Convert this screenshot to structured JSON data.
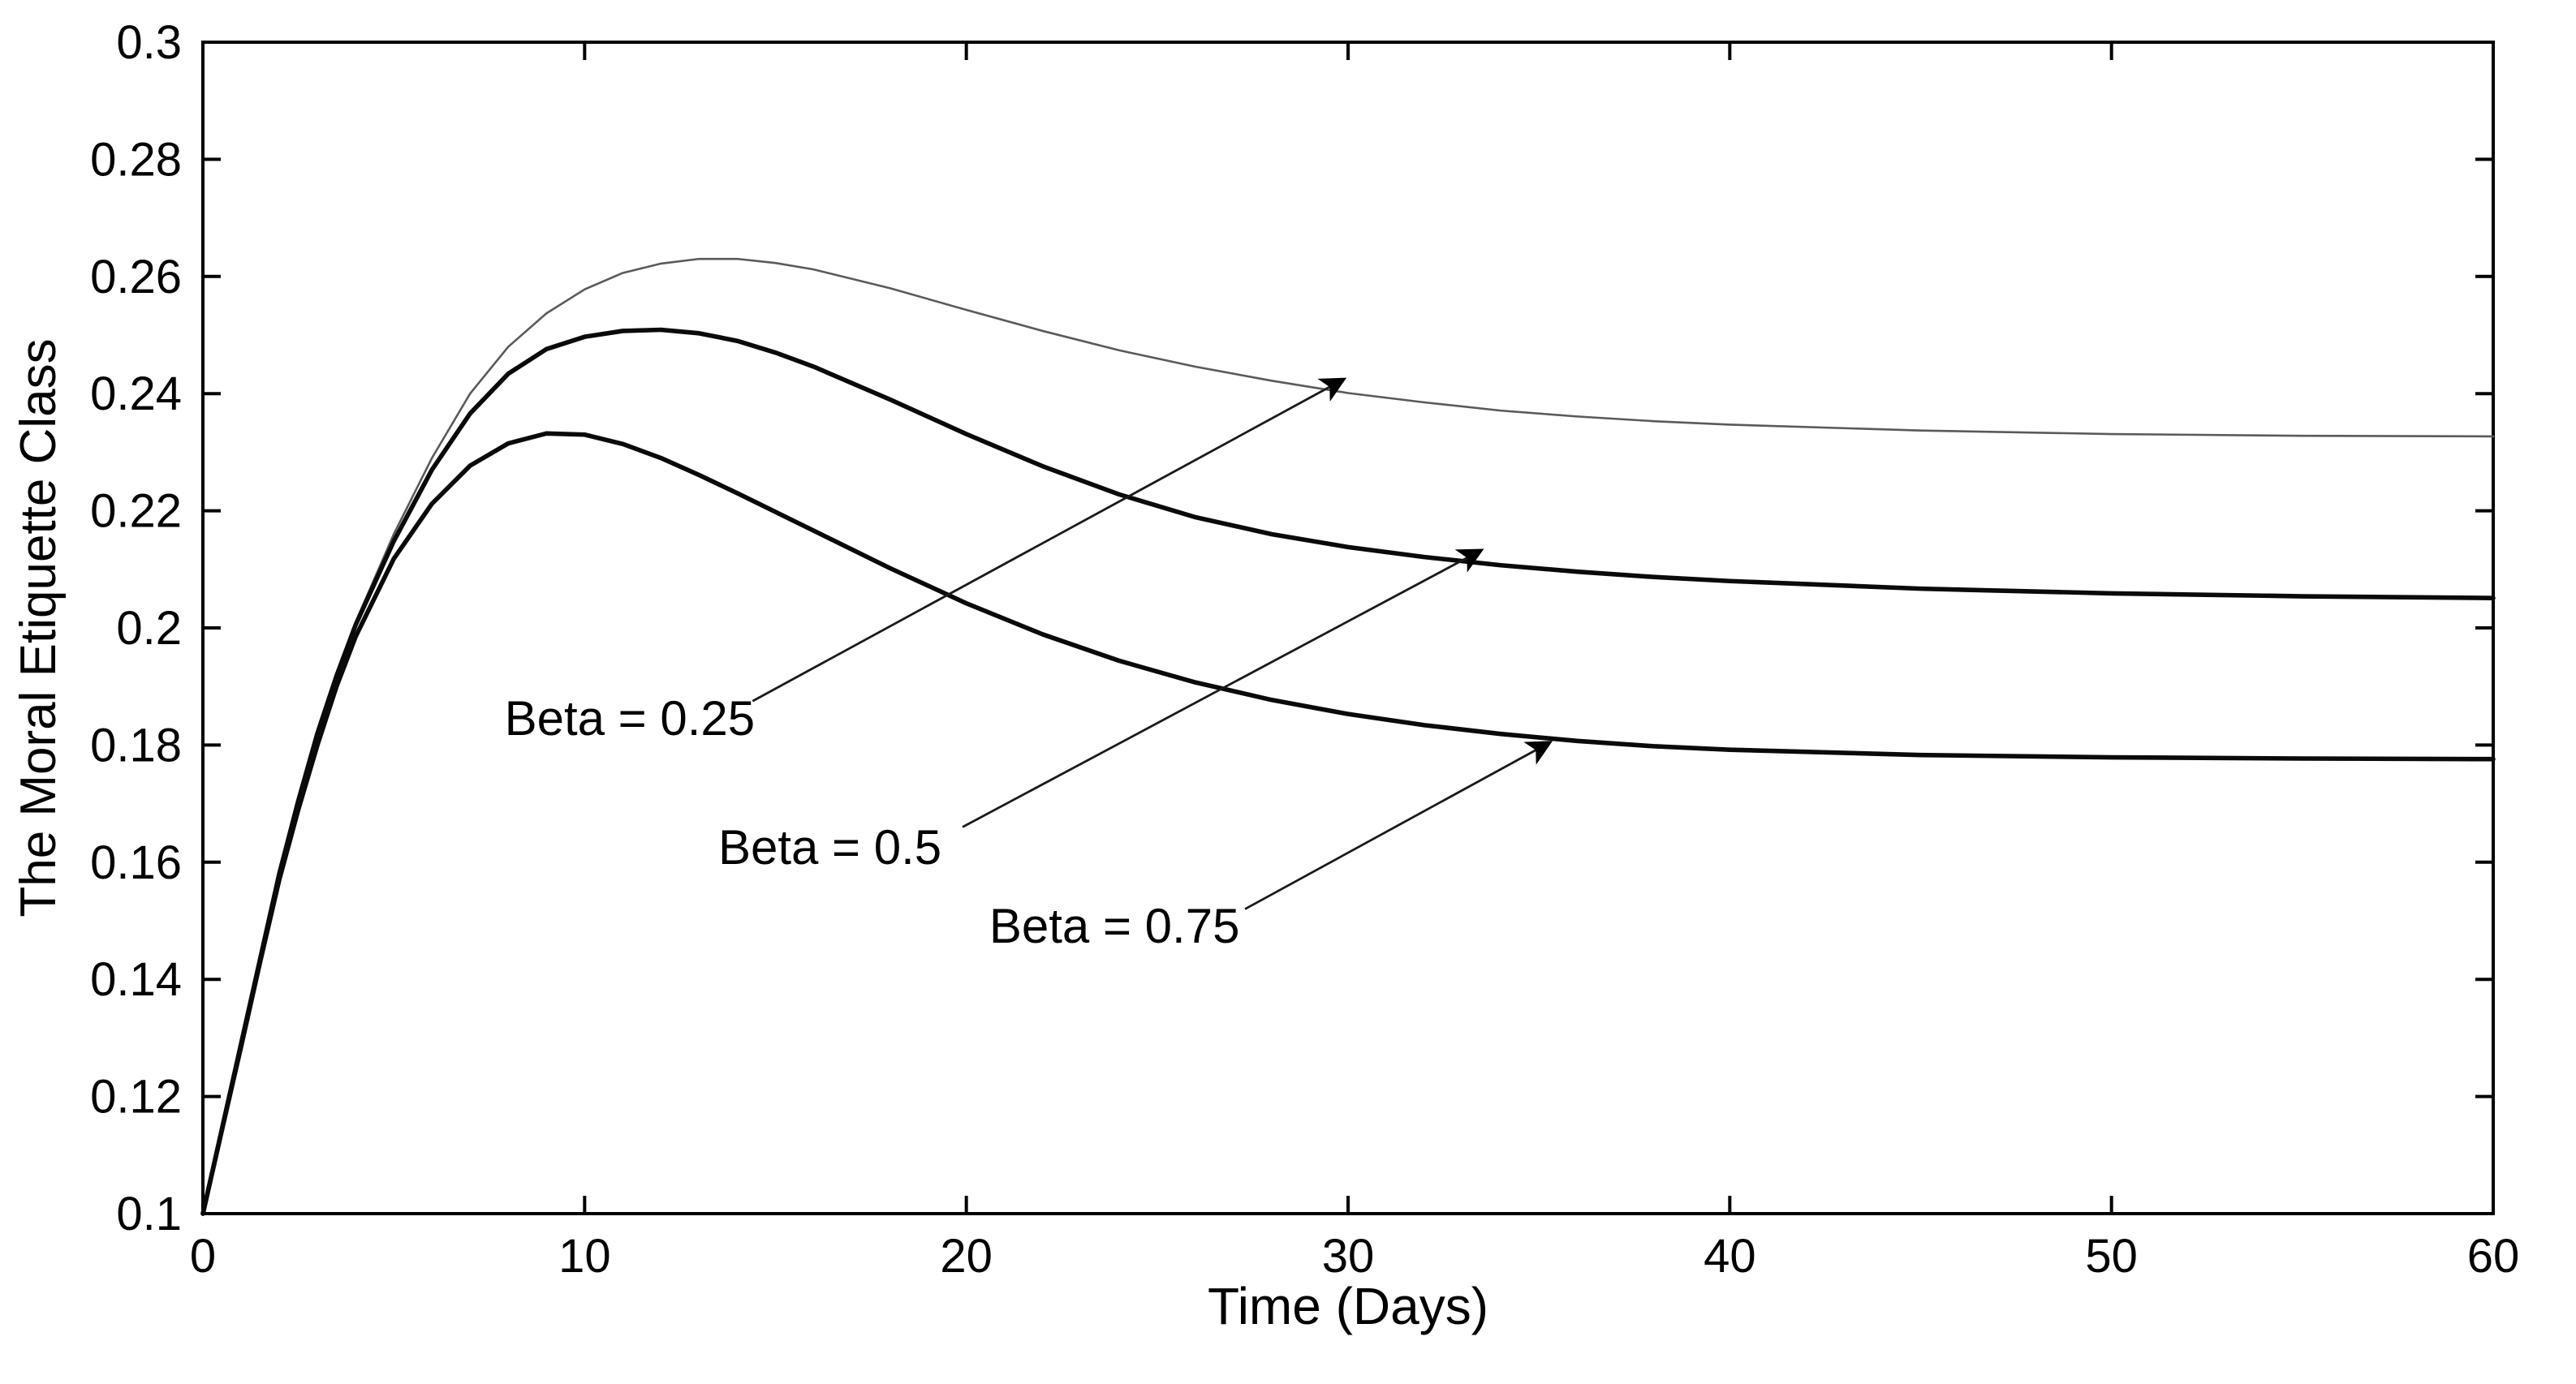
{
  "figure": {
    "background": "#ffffff",
    "axis_color": "#000000"
  },
  "chart_data": {
    "type": "line",
    "title": "",
    "xlabel": "Time (Days)",
    "ylabel": "The Moral Etiquette Class",
    "xlim": [
      0,
      60
    ],
    "ylim": [
      0.1,
      0.3
    ],
    "xticks": [
      0,
      10,
      20,
      30,
      40,
      50,
      60
    ],
    "yticks": [
      0.1,
      0.12,
      0.14,
      0.16,
      0.18,
      0.2,
      0.22,
      0.24,
      0.26,
      0.28,
      0.3
    ],
    "grid": false,
    "legend_position": "none",
    "x": [
      0,
      0.5,
      1,
      1.5,
      2,
      2.5,
      3,
      3.5,
      4,
      5,
      6,
      7,
      8,
      9,
      10,
      11,
      12,
      13,
      14,
      15,
      16,
      18,
      20,
      22,
      24,
      26,
      28,
      30,
      32,
      34,
      36,
      38,
      40,
      45,
      50,
      55,
      60
    ],
    "series": [
      {
        "name": "Beta = 0.25",
        "color": "#5a5a5a",
        "width": 1.3,
        "values": [
          0.1,
          0.1145,
          0.129,
          0.1435,
          0.158,
          0.1705,
          0.182,
          0.192,
          0.201,
          0.216,
          0.229,
          0.24,
          0.248,
          0.2537,
          0.2578,
          0.2606,
          0.2622,
          0.263,
          0.263,
          0.2623,
          0.2612,
          0.258,
          0.2543,
          0.2507,
          0.2474,
          0.2446,
          0.2422,
          0.2401,
          0.2385,
          0.2371,
          0.2361,
          0.2353,
          0.2347,
          0.2337,
          0.2331,
          0.2328,
          0.2327
        ]
      },
      {
        "name": "Beta = 0.5",
        "color": "#0a0a0a",
        "width": 2.8,
        "values": [
          0.1,
          0.1145,
          0.129,
          0.1435,
          0.158,
          0.1705,
          0.182,
          0.1918,
          0.2005,
          0.2148,
          0.227,
          0.2366,
          0.2434,
          0.2476,
          0.2497,
          0.2507,
          0.2509,
          0.2503,
          0.249,
          0.247,
          0.2446,
          0.239,
          0.2331,
          0.2276,
          0.2228,
          0.2189,
          0.216,
          0.2138,
          0.2121,
          0.2107,
          0.2096,
          0.2087,
          0.208,
          0.2067,
          0.2059,
          0.2054,
          0.2051
        ]
      },
      {
        "name": "Beta = 0.75",
        "color": "#0a0a0a",
        "width": 2.8,
        "values": [
          0.1,
          0.1143,
          0.1285,
          0.143,
          0.157,
          0.169,
          0.18,
          0.19,
          0.1985,
          0.2118,
          0.2212,
          0.2277,
          0.2315,
          0.2332,
          0.233,
          0.2314,
          0.229,
          0.2261,
          0.223,
          0.2198,
          0.2166,
          0.2102,
          0.2042,
          0.1989,
          0.1944,
          0.1907,
          0.1877,
          0.1853,
          0.1834,
          0.1819,
          0.1807,
          0.1798,
          0.1792,
          0.1783,
          0.1779,
          0.1777,
          0.1776
        ]
      }
    ],
    "annotations": [
      {
        "label": "Beta = 0.25",
        "text_x": 7.9,
        "text_y": 0.1845,
        "x1": 14.4,
        "y1": 0.1875,
        "x2": 29.9,
        "y2": 0.2425
      },
      {
        "label": "Beta = 0.5",
        "text_x": 13.5,
        "text_y": 0.1625,
        "x1": 19.9,
        "y1": 0.166,
        "x2": 33.5,
        "y2": 0.2133
      },
      {
        "label": "Beta = 0.75",
        "text_x": 20.6,
        "text_y": 0.149,
        "x1": 27.3,
        "y1": 0.152,
        "x2": 35.3,
        "y2": 0.1805
      }
    ]
  }
}
